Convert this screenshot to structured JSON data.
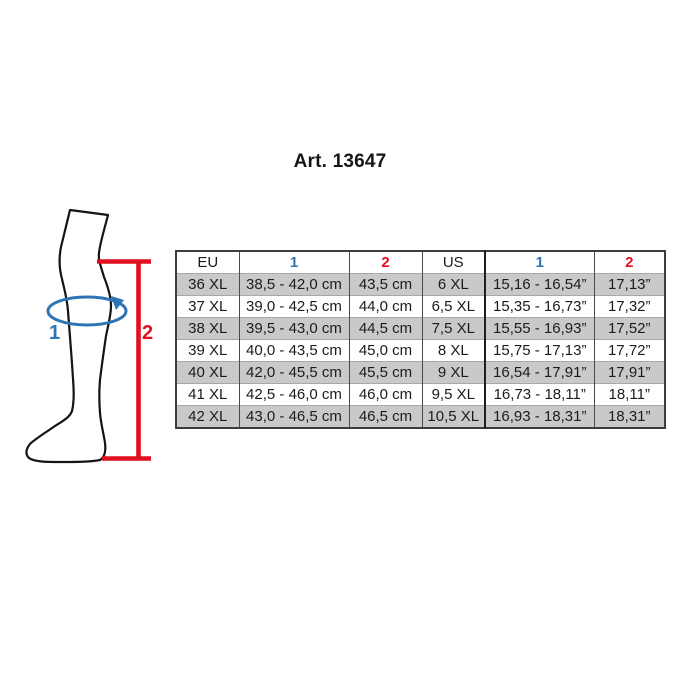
{
  "page": {
    "title": "Art. 13647"
  },
  "colors": {
    "blue": "#2E74B5",
    "red": "#E01020",
    "row_alt": "#C9C9C9",
    "border_dark": "#3d3d3d",
    "grid_light": "#a8a8a8",
    "text": "#1c1c1c"
  },
  "diagram": {
    "circumference_label": "1",
    "height_label": "2"
  },
  "chart_data": {
    "type": "table",
    "title": "Art. 13647",
    "header": [
      {
        "label": "EU",
        "color": "#1c1c1c",
        "bold": false
      },
      {
        "label": "1",
        "color": "#2E74B5",
        "bold": true
      },
      {
        "label": "2",
        "color": "#E01020",
        "bold": true
      },
      {
        "label": "US",
        "color": "#1c1c1c",
        "bold": false
      },
      {
        "label": "1",
        "color": "#2E74B5",
        "bold": true
      },
      {
        "label": "2",
        "color": "#E01020",
        "bold": true
      }
    ],
    "rows": [
      [
        "36 XL",
        "38,5 - 42,0 cm",
        "43,5 cm",
        "6 XL",
        "15,16 - 16,54”",
        "17,13”"
      ],
      [
        "37 XL",
        "39,0 - 42,5 cm",
        "44,0 cm",
        "6,5 XL",
        "15,35 - 16,73”",
        "17,32”"
      ],
      [
        "38 XL",
        "39,5 - 43,0 cm",
        "44,5 cm",
        "7,5 XL",
        "15,55 - 16,93”",
        "17,52”"
      ],
      [
        "39 XL",
        "40,0 - 43,5 cm",
        "45,0 cm",
        "8 XL",
        "15,75 - 17,13”",
        "17,72”"
      ],
      [
        "40 XL",
        "42,0 - 45,5 cm",
        "45,5 cm",
        "9 XL",
        "16,54 - 17,91”",
        "17,91”"
      ],
      [
        "41 XL",
        "42,5 - 46,0 cm",
        "46,0 cm",
        "9,5 XL",
        "16,73 - 18,11”",
        "18,11”"
      ],
      [
        "42 XL",
        "43,0 - 46,5 cm",
        "46,5 cm",
        "10,5 XL",
        "16,93 - 18,31”",
        "18,31”"
      ]
    ]
  }
}
